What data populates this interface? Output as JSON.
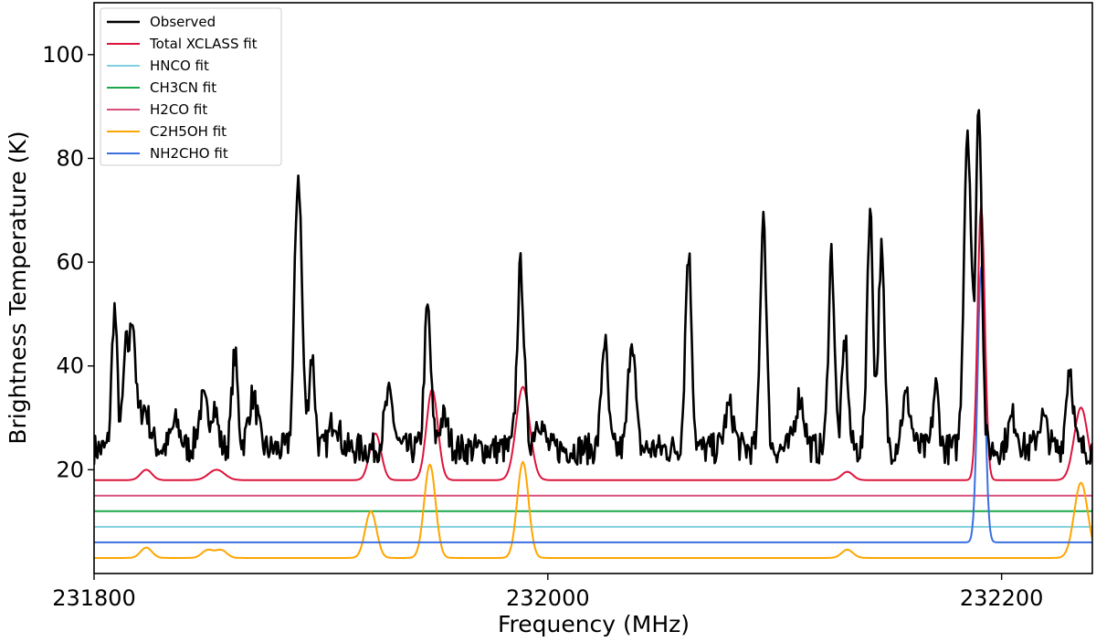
{
  "chart_data": {
    "type": "line",
    "title": "",
    "xlabel": "Frequency (MHz)",
    "ylabel": "Brightness Temperature (K)",
    "xlim": [
      231800,
      232240
    ],
    "ylim": [
      0,
      110
    ],
    "x_ticks": [
      231800,
      232000,
      232200
    ],
    "x_tick_labels": [
      "231800",
      "232000",
      "232200"
    ],
    "y_ticks": [
      20,
      40,
      60,
      80,
      100
    ],
    "y_tick_labels": [
      "20",
      "40",
      "60",
      "80",
      "100"
    ],
    "grid": false,
    "legend_position": "top-left",
    "series": [
      {
        "name": "Observed",
        "color": "#000000",
        "baseline": 24,
        "noise": 3,
        "peaks": [
          [
            231809,
            27,
            1.2
          ],
          [
            231814,
            19,
            1.2
          ],
          [
            231817,
            24,
            1.2
          ],
          [
            231822,
            8,
            2.5
          ],
          [
            231836,
            5,
            2
          ],
          [
            231848,
            9,
            2
          ],
          [
            231853,
            8,
            1.5
          ],
          [
            231862,
            18,
            1.3
          ],
          [
            231870,
            10,
            2
          ],
          [
            231890,
            53,
            1.6
          ],
          [
            231896,
            18,
            1.3
          ],
          [
            231906,
            6,
            2
          ],
          [
            231930,
            10,
            2
          ],
          [
            231947,
            27,
            1.4
          ],
          [
            231954,
            6,
            2
          ],
          [
            231988,
            35,
            1.5
          ],
          [
            231996,
            6,
            2
          ],
          [
            232025,
            21,
            1.4
          ],
          [
            232037,
            22,
            1.5
          ],
          [
            232062,
            38,
            1.4
          ],
          [
            232080,
            8,
            2
          ],
          [
            232095,
            46,
            1.3
          ],
          [
            232111,
            10,
            2
          ],
          [
            232125,
            38,
            1.3
          ],
          [
            232131,
            21,
            1.3
          ],
          [
            232142,
            46,
            1.3
          ],
          [
            232147,
            38,
            1.3
          ],
          [
            232158,
            10,
            2
          ],
          [
            232171,
            12,
            1.3
          ],
          [
            232185,
            62,
            1.6
          ],
          [
            232190,
            67,
            1.3
          ],
          [
            232205,
            6,
            2
          ],
          [
            232218,
            6,
            2
          ],
          [
            232230,
            16,
            1.5
          ]
        ]
      },
      {
        "name": "Total XCLASS fit",
        "color": "#dc143c",
        "baseline": 18,
        "peaks": [
          [
            231823,
            2,
            2.5
          ],
          [
            231854,
            2,
            3.5
          ],
          [
            231924,
            9,
            2.5
          ],
          [
            231949,
            17.5,
            2.5
          ],
          [
            231989,
            18,
            3
          ],
          [
            232132,
            1.6,
            2.5
          ],
          [
            232191,
            53,
            1.6
          ],
          [
            232235,
            14,
            3
          ]
        ]
      },
      {
        "name": "HNCO fit",
        "color": "#7fd0e0",
        "baseline": 9,
        "peaks": []
      },
      {
        "name": "CH3CN fit",
        "color": "#1aa74b",
        "baseline": 12,
        "peaks": []
      },
      {
        "name": "H2CO fit",
        "color": "#d9507a",
        "baseline": 15,
        "peaks": []
      },
      {
        "name": "C2H5OH fit",
        "color": "#ffa500",
        "baseline": 3,
        "peaks": [
          [
            231823,
            2,
            2.5
          ],
          [
            231850,
            1.5,
            2.5
          ],
          [
            231856,
            1.5,
            2.5
          ],
          [
            231922,
            9,
            2.5
          ],
          [
            231948,
            18,
            2.5
          ],
          [
            231989,
            18.5,
            2.5
          ],
          [
            232132,
            1.6,
            2.5
          ],
          [
            232235,
            14.5,
            3
          ]
        ]
      },
      {
        "name": "NH2CHO fit",
        "color": "#3b6fe0",
        "baseline": 6,
        "peaks": [
          [
            232191,
            53,
            1.6
          ]
        ]
      }
    ]
  }
}
